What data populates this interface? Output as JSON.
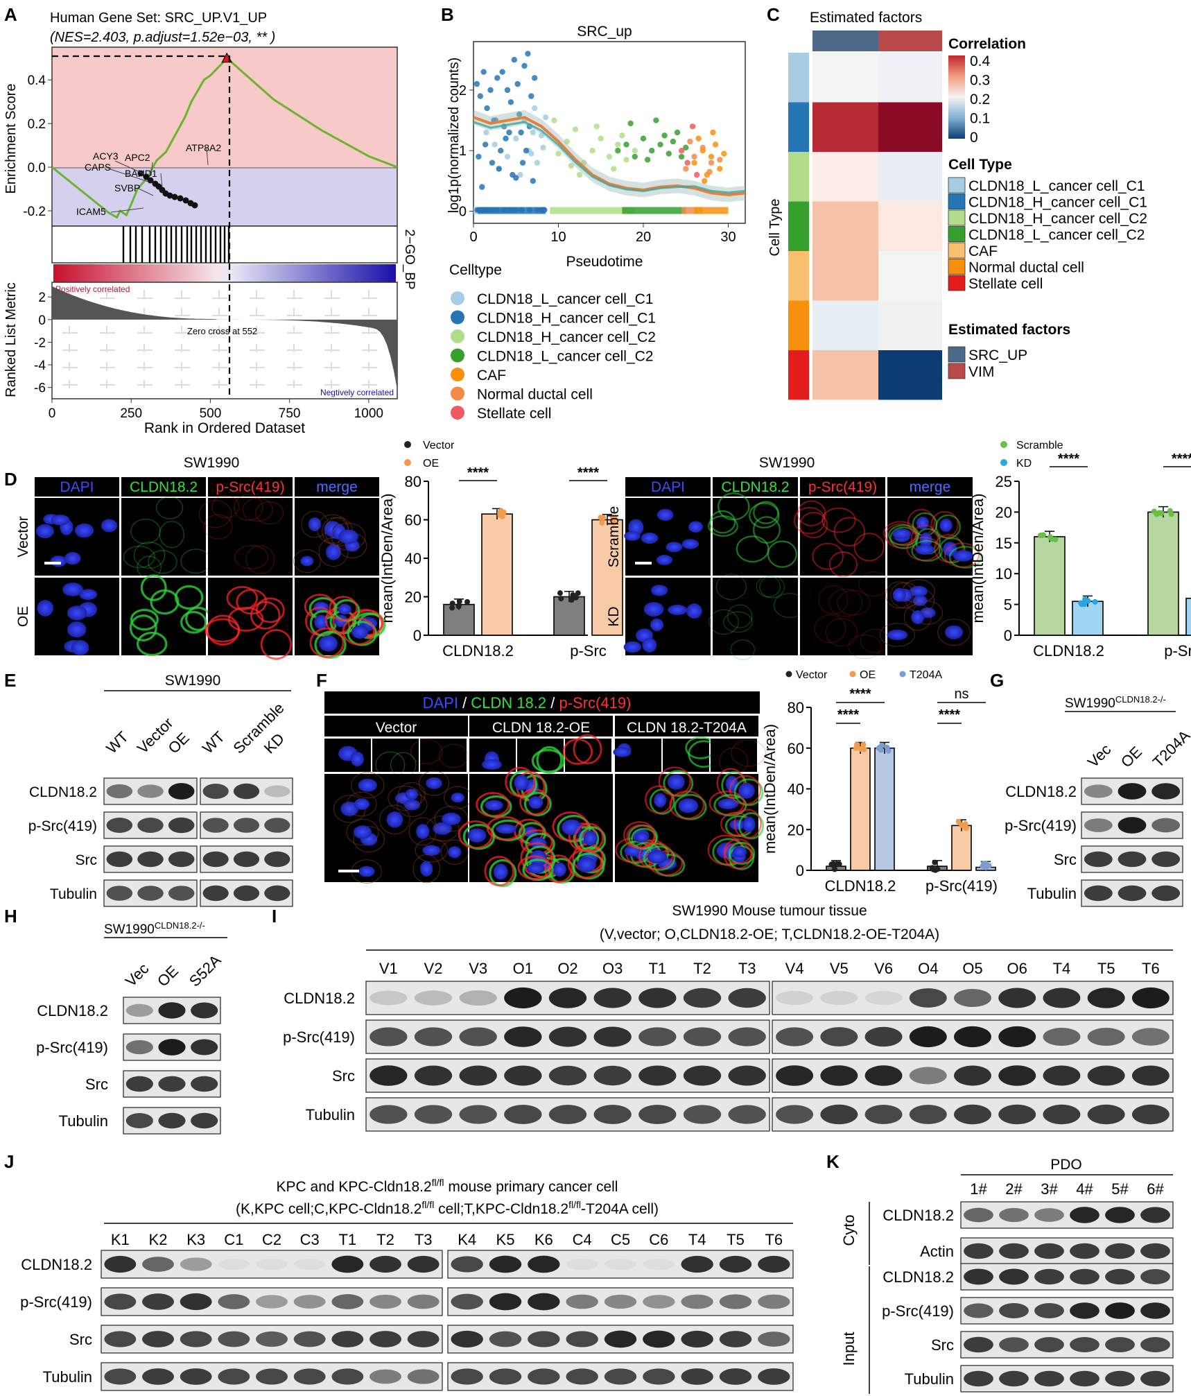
{
  "panels": {
    "A": {
      "letter": "A",
      "title": "Human Gene Set: SRC_UP.V1_UP",
      "subtitle": "(NES=2.403, p.adjust=1.52e−03, ** )",
      "ylabel_top": "Enrichment Score",
      "ylabel_bottom": "Ranked List Metric",
      "side_label": "2−GO_BP",
      "xlabel": "Rank in Ordered Dataset",
      "y_ticks_top": [
        "0.4",
        "0.2",
        "0.0",
        "-0.2"
      ],
      "y_ticks_bottom": [
        "2",
        "0",
        "-2",
        "-4",
        "-6"
      ],
      "x_ticks": [
        "0",
        "250",
        "500",
        "750",
        "1000"
      ],
      "genes": [
        "ACY3",
        "APC2",
        "CAPS",
        "BAHD1",
        "SVBP",
        "ICAM5",
        "ATP8A2"
      ],
      "pos_label": "Positively correlated",
      "neg_label": "Negtively correlated",
      "zero_cross": "Zero cross at 552"
    },
    "B": {
      "letter": "B",
      "legend_title": "Celltype",
      "legend": [
        {
          "name": "CLDN18_L_cancer cell_C1",
          "color": "#a6cde3"
        },
        {
          "name": "CLDN18_H_cancer cell_C1",
          "color": "#2676b5"
        },
        {
          "name": "CLDN18_H_cancer cell_C2",
          "color": "#b1dd8b"
        },
        {
          "name": "CLDN18_L_cancer cell_C2",
          "color": "#36a02e"
        },
        {
          "name": "CAF",
          "color": "#f8900e"
        },
        {
          "name": "Normal ductal cell",
          "color": "#f5894a"
        },
        {
          "name": "Stellate cell",
          "color": "#ee5a60"
        }
      ]
    },
    "C": {
      "letter": "C",
      "top_label": "Estimated factors",
      "side_label": "Cell Type",
      "corr_title": "Correlation",
      "corr_ticks": [
        "0.4",
        "0.3",
        "0.2",
        "0.1",
        "0"
      ],
      "celltype_title": "Cell Type",
      "celltypes": [
        {
          "name": "CLDN18_L_cancer cell_C1",
          "color": "#a6cde3"
        },
        {
          "name": "CLDN18_H_cancer cell_C1",
          "color": "#2676b5"
        },
        {
          "name": "CLDN18_H_cancer cell_C2",
          "color": "#b1dd8b"
        },
        {
          "name": "CLDN18_L_cancer cell_C2",
          "color": "#36a02e"
        },
        {
          "name": "CAF",
          "color": "#f9bf6f"
        },
        {
          "name": "Normal ductal cell",
          "color": "#f8900e"
        },
        {
          "name": "Stellate cell",
          "color": "#e31c1c"
        }
      ],
      "factor_title": "Estimated factors",
      "factors": [
        {
          "name": "SRC_UP",
          "color": "#4d6a8a"
        },
        {
          "name": "VIM",
          "color": "#b84a4a"
        }
      ],
      "heatmap": [
        [
          "#f4f4f4",
          "#eef2f6"
        ],
        [
          "#b72c34",
          "#8b0a24"
        ],
        [
          "#fbeee9",
          "#e9eef4"
        ],
        [
          "#f7c1a8",
          "#fbe9e2"
        ],
        [
          "#f7c1a8",
          "#f4f4f4"
        ],
        [
          "#e7eef4",
          "#f1f1f1"
        ],
        [
          "#f7c1a8",
          "#0b3c74"
        ]
      ]
    },
    "D": {
      "letter": "D",
      "left": {
        "cell_line": "SW1990",
        "channels": [
          "DAPI",
          "CLDN18.2",
          "p-Src(419)",
          "merge"
        ],
        "rows": [
          "Vector",
          "OE"
        ]
      },
      "right": {
        "cell_line": "SW1990",
        "channels": [
          "DAPI",
          "CLDN18.2",
          "p-Src(419)",
          "merge"
        ],
        "rows": [
          "Scramble",
          "KD"
        ]
      }
    },
    "E": {
      "letter": "E",
      "cell_line": "SW1990",
      "lanes": [
        "WT",
        "Vector",
        "OE",
        "WT",
        "Scramble",
        "KD"
      ],
      "rows": [
        "CLDN18.2",
        "p-Src(419)",
        "Src",
        "Tubulin"
      ]
    },
    "F": {
      "letter": "F",
      "header": [
        {
          "text": "DAPI",
          "color": "#3a4cff"
        },
        {
          "text": " / ",
          "color": "#ffffff"
        },
        {
          "text": "CLDN 18.2",
          "color": "#34e03a"
        },
        {
          "text": " / ",
          "color": "#ffffff"
        },
        {
          "text": "p-Src(419)",
          "color": "#ff3030"
        }
      ],
      "columns": [
        "Vector",
        "CLDN 18.2-OE",
        "CLDN 18.2-T204A"
      ]
    },
    "G": {
      "letter": "G",
      "cell_line": "SW1990",
      "cell_line_sup": "CLDN18.2-/-",
      "lanes": [
        "Vec",
        "OE",
        "T204A"
      ],
      "rows": [
        "CLDN18.2",
        "p-Src(419)",
        "Src",
        "Tubulin"
      ]
    },
    "H": {
      "letter": "H",
      "cell_line": "SW1990",
      "cell_line_sup": "CLDN18.2-/-",
      "lanes": [
        "Vec",
        "OE",
        "S52A"
      ],
      "rows": [
        "CLDN18.2",
        "p-Src(419)",
        "Src",
        "Tubulin"
      ]
    },
    "I": {
      "letter": "I",
      "title": "SW1990 Mouse tumour tissue",
      "subtitle": "(V,vector; O,CLDN18.2-OE; T,CLDN18.2-OE-T204A)",
      "lanes": [
        "V1",
        "V2",
        "V3",
        "O1",
        "O2",
        "O3",
        "T1",
        "T2",
        "T3",
        "V4",
        "V5",
        "V6",
        "O4",
        "O5",
        "O6",
        "T4",
        "T5",
        "T6"
      ],
      "rows": [
        "CLDN18.2",
        "p-Src(419)",
        "Src",
        "Tubulin"
      ]
    },
    "J": {
      "letter": "J",
      "title_pre": "KPC and KPC-Cldn18.2",
      "title_sup": "fl/fl",
      "title_post": " mouse primary cancer cell",
      "sub_a": "(K,KPC cell;C,KPC-Cldn18.2",
      "sub_sup1": "fl/fl",
      "sub_b": " cell;T,KPC-Cldn18.2",
      "sub_sup2": "fl/fl",
      "sub_c": "-T204A cell)",
      "lanes": [
        "K1",
        "K2",
        "K3",
        "C1",
        "C2",
        "C3",
        "T1",
        "T2",
        "T3",
        "K4",
        "K5",
        "K6",
        "C4",
        "C5",
        "C6",
        "T4",
        "T5",
        "T6"
      ],
      "rows": [
        "CLDN18.2",
        "p-Src(419)",
        "Src",
        "Tubulin"
      ]
    },
    "K": {
      "letter": "K",
      "title": "PDO",
      "lanes": [
        "1#",
        "2#",
        "3#",
        "4#",
        "5#",
        "6#"
      ],
      "group_cyto": "Cyto",
      "group_input": "Input",
      "rows_cyto": [
        "CLDN18.2",
        "Actin"
      ],
      "rows_input": [
        "CLDN18.2",
        "p-Src(419)",
        "Src",
        "Tubulin"
      ]
    }
  },
  "chart_data": [
    {
      "panel": "A",
      "type": "line",
      "title": "Human Gene Set: SRC_UP.V1_UP",
      "subtitle": "(NES=2.403, p.adjust=1.52e−03, ** )",
      "ylabel": "Enrichment Score",
      "xlabel": "Rank in Ordered Dataset",
      "xlim": [
        0,
        1090
      ],
      "ylim": [
        -0.27,
        0.55
      ],
      "x": [
        0,
        60,
        120,
        180,
        205,
        215,
        235,
        250,
        270,
        300,
        330,
        360,
        390,
        420,
        440,
        460,
        480,
        500,
        520,
        540,
        552,
        700,
        850,
        1000,
        1090
      ],
      "y": [
        0.0,
        -0.07,
        -0.14,
        -0.21,
        -0.23,
        -0.2,
        -0.22,
        -0.17,
        -0.1,
        -0.05,
        0.03,
        0.07,
        0.15,
        0.23,
        0.3,
        0.35,
        0.4,
        0.42,
        0.45,
        0.48,
        0.5,
        0.31,
        0.17,
        0.05,
        0.0
      ],
      "peak": {
        "x": 552,
        "y": 0.5
      }
    },
    {
      "panel": "B",
      "type": "scatter",
      "title": "SRC_up",
      "xlabel": "Pseudotime",
      "ylabel": "log1p(normalized counts)",
      "xlim": [
        0,
        32
      ],
      "ylim": [
        -0.2,
        2.8
      ],
      "x_ticks": [
        "0",
        "10",
        "20",
        "30"
      ],
      "y_ticks": [
        "0",
        "1",
        "2"
      ],
      "series": [
        {
          "name": "CLDN18_L_cancer cell_C1",
          "color": "#a6cde3",
          "x": [
            1.5,
            2.5,
            4,
            5,
            6,
            6.5,
            7,
            7.5,
            8,
            8.5,
            3,
            5.5,
            7.2,
            6.8,
            8.2
          ],
          "y": [
            1.3,
            1.1,
            0.9,
            1.2,
            1.5,
            1.0,
            1.3,
            0.8,
            1.25,
            1.55,
            0.7,
            0.6,
            1.7,
            0.95,
            1.05
          ]
        },
        {
          "name": "CLDN18_H_cancer cell_C1",
          "color": "#2676b5",
          "x": [
            0.4,
            0.8,
            1.2,
            1.6,
            2.0,
            2.4,
            2.8,
            3.2,
            3.6,
            4.0,
            4.4,
            4.8,
            5.2,
            5.6,
            6.0,
            6.4,
            6.8,
            7.2,
            0.6,
            1.4,
            2.2,
            3.0,
            3.8,
            4.6,
            5.4,
            6.2,
            7.0,
            1.0,
            2.6,
            4.2,
            5.8,
            6.6,
            3.4,
            5.0
          ],
          "y": [
            2.1,
            1.9,
            2.3,
            1.7,
            2.0,
            1.5,
            2.2,
            1.0,
            1.4,
            2.0,
            1.8,
            2.5,
            2.1,
            1.3,
            2.4,
            2.6,
            1.9,
            2.2,
            0.9,
            1.1,
            0.8,
            0.7,
            1.2,
            0.6,
            1.6,
            1.0,
            0.5,
            0.4,
            1.5,
            1.3,
            0.8,
            1.4,
            2.3,
            0.55
          ]
        },
        {
          "name": "CLDN18_H_cancer cell_C2",
          "color": "#b1dd8b",
          "x": [
            10,
            11,
            12,
            13,
            14,
            15,
            16,
            17,
            18,
            19,
            12.5,
            14.5,
            16.5,
            9.5,
            11.5,
            17.5
          ],
          "y": [
            0.95,
            1.15,
            1.35,
            0.8,
            1.0,
            1.2,
            0.9,
            1.1,
            0.85,
            1.0,
            0.6,
            1.4,
            0.7,
            1.5,
            0.75,
            1.25
          ]
        },
        {
          "name": "CLDN18_L_cancer cell_C2",
          "color": "#36a02e",
          "x": [
            17,
            18,
            19,
            20,
            21,
            22,
            23,
            24,
            25,
            18.5,
            20.5,
            22.5,
            24.5,
            21.5,
            23.5
          ],
          "y": [
            1.0,
            1.1,
            0.9,
            1.2,
            1.0,
            1.1,
            0.95,
            1.3,
            1.05,
            1.45,
            0.85,
            1.25,
            0.9,
            1.5,
            1.15
          ]
        },
        {
          "name": "CAF",
          "color": "#f8900e",
          "x": [
            26,
            27,
            28,
            29,
            26.5,
            27.5,
            28.5,
            29.5,
            27.2,
            28.2
          ],
          "y": [
            0.8,
            1.0,
            0.9,
            0.7,
            1.2,
            0.6,
            1.1,
            0.95,
            0.5,
            1.3
          ]
        },
        {
          "name": "Normal ductal cell",
          "color": "#f5894a",
          "x": [
            25,
            26,
            27,
            28,
            29,
            25.5,
            27.8
          ],
          "y": [
            0.7,
            0.9,
            1.05,
            0.8,
            0.85,
            1.15,
            0.65
          ]
        },
        {
          "name": "Stellate cell",
          "color": "#ee5a60",
          "x": [
            24.5,
            25.2,
            25.8,
            26.3
          ],
          "y": [
            1.0,
            0.8,
            1.4,
            0.6
          ]
        }
      ],
      "trend": {
        "x": [
          0,
          2,
          4,
          6,
          8,
          10,
          12,
          14,
          16,
          18,
          20,
          22,
          24,
          26,
          28,
          30,
          32
        ],
        "y": [
          1.55,
          1.45,
          1.5,
          1.55,
          1.4,
          1.15,
          0.85,
          0.6,
          0.45,
          0.38,
          0.35,
          0.4,
          0.42,
          0.38,
          0.3,
          0.27,
          0.3
        ]
      }
    },
    {
      "panel": "D-left",
      "type": "bar",
      "ylabel": "mean(IntDen/Area)",
      "categories": [
        "CLDN18.2",
        "p-Src"
      ],
      "ylim": [
        0,
        80
      ],
      "y_ticks": [
        "0",
        "20",
        "40",
        "60",
        "80"
      ],
      "series": [
        {
          "name": "Vector",
          "color": "#7f7f7f",
          "values": [
            16,
            20
          ]
        },
        {
          "name": "OE",
          "color": "#f7cba6",
          "values": [
            63,
            60
          ]
        }
      ],
      "significance": [
        "****",
        "****"
      ]
    },
    {
      "panel": "D-right",
      "type": "bar",
      "ylabel": "mean(IntDen/Area)",
      "categories": [
        "CLDN18.2",
        "p-Src"
      ],
      "ylim": [
        0,
        25
      ],
      "y_ticks": [
        "0",
        "5",
        "10",
        "15",
        "20",
        "25"
      ],
      "series": [
        {
          "name": "Scramble",
          "color": "#b6d7a0",
          "values": [
            16,
            20
          ]
        },
        {
          "name": "KD",
          "color": "#9fd6f2",
          "values": [
            5.5,
            6
          ]
        }
      ],
      "significance": [
        "****",
        "****"
      ]
    },
    {
      "panel": "F",
      "type": "bar",
      "ylabel": "mean(IntDen/Area)",
      "categories": [
        "CLDN18.2",
        "p-Src(419)"
      ],
      "ylim": [
        0,
        80
      ],
      "y_ticks": [
        "0",
        "20",
        "40",
        "60",
        "80"
      ],
      "series": [
        {
          "name": "Vector",
          "color": "#7f7f7f",
          "values": [
            2,
            2
          ]
        },
        {
          "name": "OE",
          "color": "#f7cba6",
          "values": [
            60,
            22
          ]
        },
        {
          "name": "T204A",
          "color": "#b6c8e4",
          "values": [
            60,
            1.5
          ]
        }
      ],
      "significance": [
        "****",
        "****",
        "****",
        "ns"
      ]
    }
  ]
}
